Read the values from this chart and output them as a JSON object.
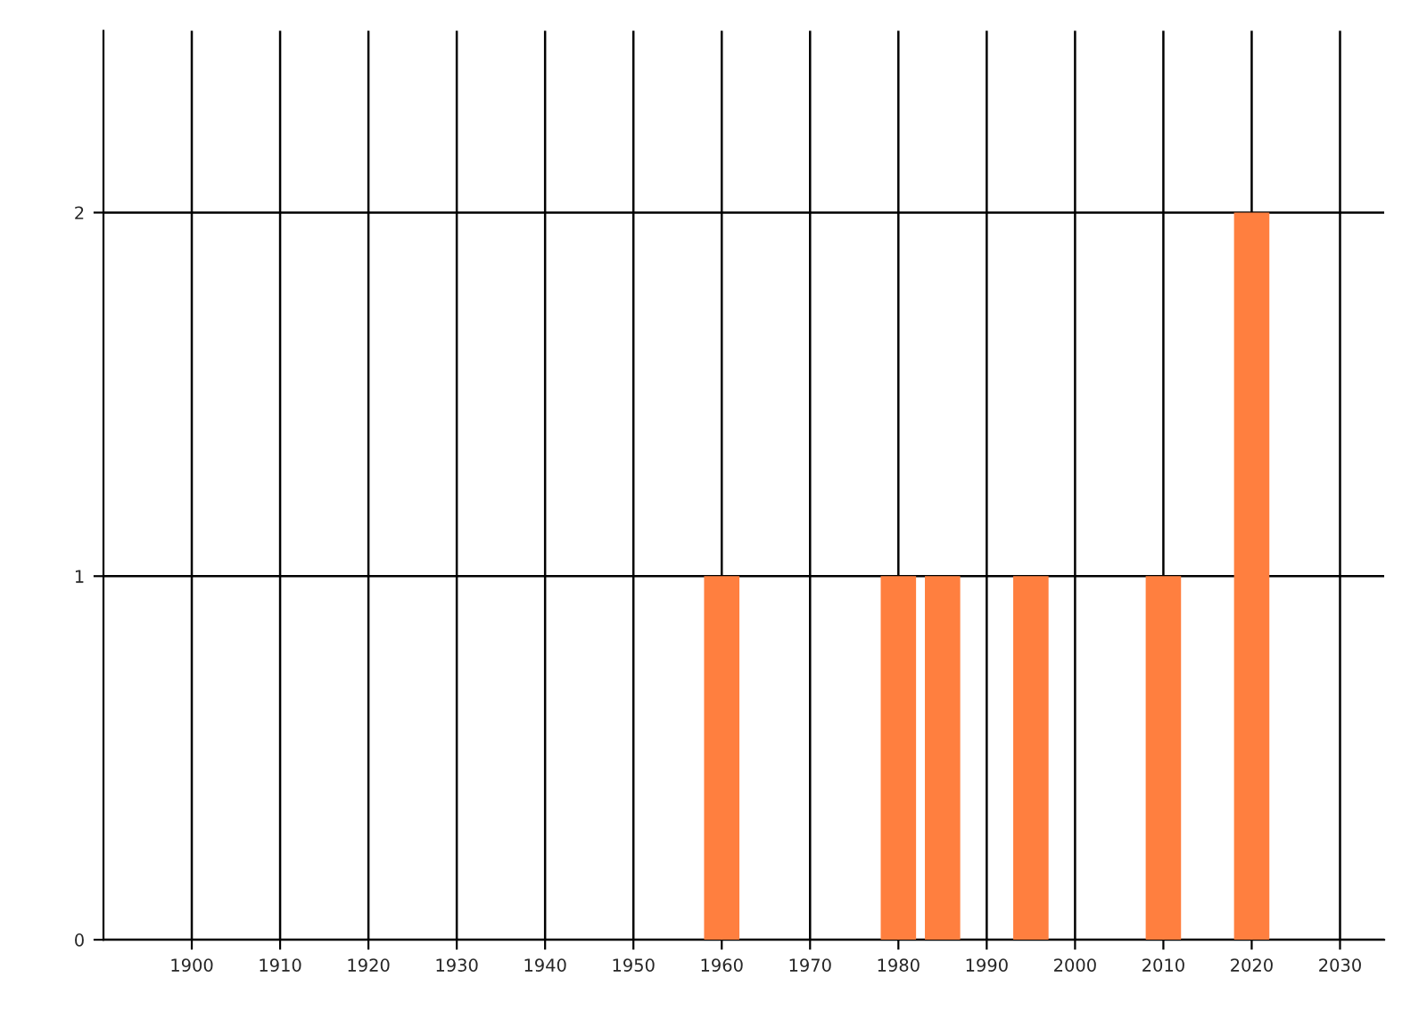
{
  "chart_data": {
    "type": "bar",
    "x": [
      1960,
      1980,
      1985,
      1995,
      2010,
      2020
    ],
    "values": [
      1,
      1,
      1,
      1,
      1,
      2
    ],
    "color": "#ff7f3f",
    "xlim": [
      1890,
      2035
    ],
    "xticks": [
      1900,
      1910,
      1920,
      1930,
      1940,
      1950,
      1960,
      1970,
      1980,
      1990,
      2000,
      2010,
      2020,
      2030
    ],
    "ylim": [
      0,
      2.5
    ],
    "yticks": [
      0,
      1,
      2
    ],
    "grid": true,
    "legend": false
  }
}
